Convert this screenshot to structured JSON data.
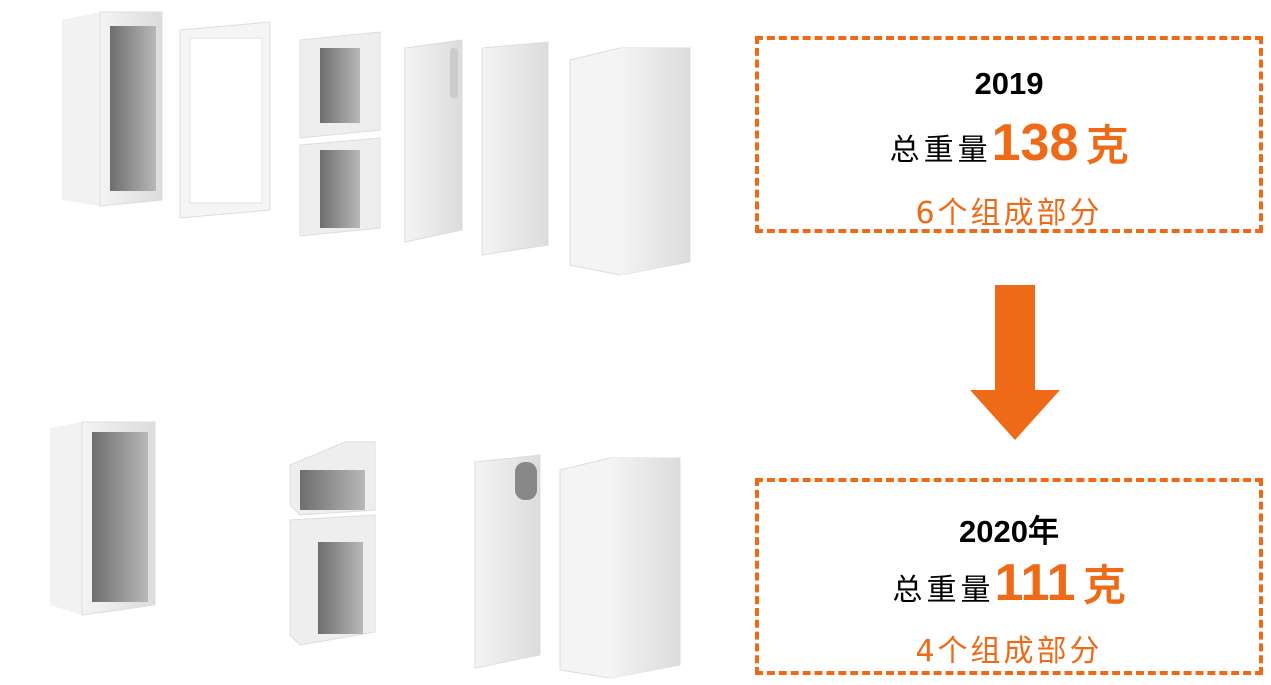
{
  "before": {
    "year": "2019",
    "weight_label": "总重量",
    "weight": 138,
    "unit": "克",
    "parts": "6个组成部分"
  },
  "after": {
    "year": "2020年",
    "weight_label": "总重量",
    "weight": 111,
    "unit": "克",
    "parts": "4个组成部分"
  }
}
